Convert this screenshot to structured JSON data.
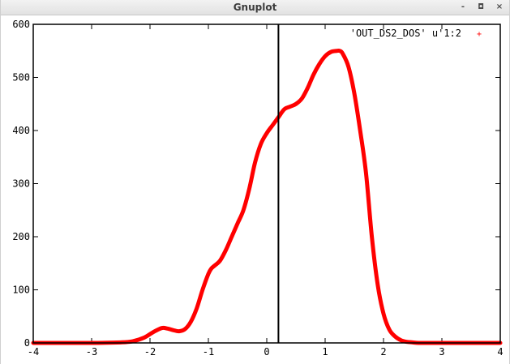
{
  "window": {
    "title": "Gnuplot",
    "minimize_label": "-",
    "maximize_label": "◘",
    "close_label": "×"
  },
  "chart_data": {
    "type": "line",
    "title": "",
    "xlabel": "",
    "ylabel": "",
    "xlim": [
      -4,
      4
    ],
    "ylim": [
      0,
      600
    ],
    "x_ticks": [
      -4,
      -3,
      -2,
      -1,
      0,
      1,
      2,
      3,
      4
    ],
    "y_ticks": [
      0,
      100,
      200,
      300,
      400,
      500,
      600
    ],
    "x_tick_labels": [
      "-4",
      "-3",
      "-2",
      "-1",
      "0",
      "1",
      "2",
      "3",
      "4"
    ],
    "y_tick_labels": [
      "0",
      "100",
      "200",
      "300",
      "400",
      "500",
      "600"
    ],
    "grid": false,
    "legend_position": "top-right",
    "vertical_marker_x": 0.2,
    "series": [
      {
        "name": "'OUT_DS2_DOS' u'1:2",
        "color": "#ff0000",
        "marker": "+",
        "x": [
          -4.0,
          -3.0,
          -2.5,
          -2.3,
          -2.1,
          -1.95,
          -1.8,
          -1.7,
          -1.6,
          -1.5,
          -1.4,
          -1.3,
          -1.2,
          -1.1,
          -1.0,
          -0.95,
          -0.9,
          -0.8,
          -0.7,
          -0.6,
          -0.5,
          -0.4,
          -0.3,
          -0.2,
          -0.1,
          0.0,
          0.1,
          0.2,
          0.3,
          0.4,
          0.5,
          0.6,
          0.7,
          0.8,
          0.9,
          1.0,
          1.1,
          1.2,
          1.25,
          1.3,
          1.4,
          1.5,
          1.6,
          1.7,
          1.8,
          1.9,
          2.0,
          2.1,
          2.2,
          2.3,
          2.4,
          2.5,
          2.6,
          2.8,
          3.0,
          4.0
        ],
        "y": [
          0,
          0,
          1,
          3,
          10,
          20,
          28,
          27,
          24,
          22,
          26,
          40,
          65,
          100,
          130,
          140,
          145,
          155,
          175,
          200,
          225,
          250,
          290,
          340,
          375,
          395,
          410,
          425,
          440,
          445,
          450,
          460,
          480,
          505,
          525,
          540,
          548,
          550,
          550,
          545,
          520,
          470,
          400,
          320,
          200,
          110,
          55,
          25,
          12,
          5,
          2,
          1,
          0,
          0,
          0,
          0
        ]
      }
    ]
  }
}
